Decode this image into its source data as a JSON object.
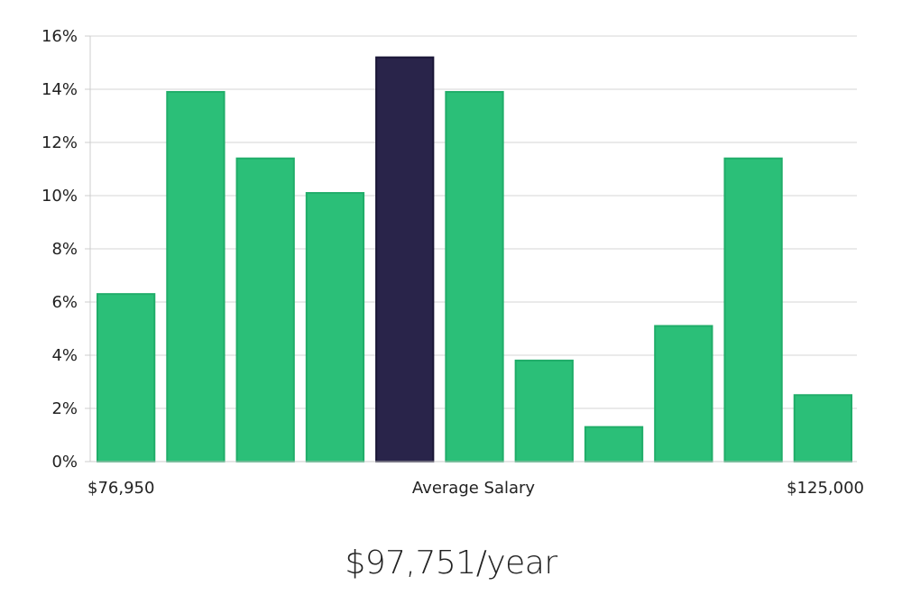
{
  "chart_data": {
    "type": "bar",
    "values": [
      6.3,
      13.9,
      11.4,
      10.1,
      15.2,
      13.9,
      3.8,
      1.3,
      5.1,
      11.4,
      2.5
    ],
    "highlight_index": 4,
    "ylim": [
      0,
      16
    ],
    "y_ticks": [
      "0%",
      "2%",
      "4%",
      "6%",
      "8%",
      "10%",
      "12%",
      "14%",
      "16%"
    ],
    "x_labels": {
      "left": "$76,950",
      "center": "Average Salary",
      "right": "$125,000"
    },
    "grid": true,
    "colors": {
      "bar": "#2bbf78",
      "bar_stroke": "#20ad69",
      "highlight": "#29244a",
      "highlight_stroke": "#1a1636",
      "grid": "#e3e3e3",
      "axis": "#cccccc"
    }
  },
  "summary": {
    "salary": "$97,751/year"
  }
}
